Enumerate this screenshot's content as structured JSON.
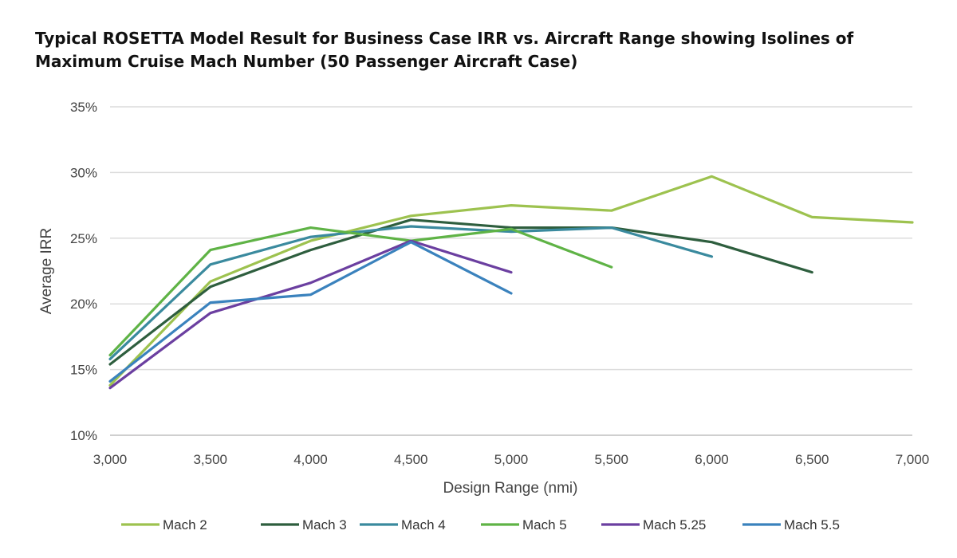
{
  "chart_data": {
    "type": "line",
    "title": "Typical ROSETTA Model Result for Business Case IRR vs. Aircraft Range showing Isolines of Maximum Cruise Mach Number (50 Passenger Aircraft Case)",
    "xlabel": "Design Range (nmi)",
    "ylabel": "Average IRR",
    "xlim": [
      3000,
      7000
    ],
    "ylim": [
      10,
      35
    ],
    "x_ticks": [
      "3,000",
      "3,500",
      "4,000",
      "4,500",
      "5,000",
      "5,500",
      "6,000",
      "6,500",
      "7,000"
    ],
    "x_tick_values": [
      3000,
      3500,
      4000,
      4500,
      5000,
      5500,
      6000,
      6500,
      7000
    ],
    "y_ticks": [
      "10%",
      "15%",
      "20%",
      "25%",
      "30%",
      "35%"
    ],
    "y_tick_values": [
      10,
      15,
      20,
      25,
      30,
      35
    ],
    "grid": "horizontal",
    "legend_position": "bottom",
    "series": [
      {
        "name": "Mach 2",
        "color": "#9dc24f",
        "x": [
          3000,
          3500,
          4000,
          4500,
          5000,
          5500,
          6000,
          6500,
          7000
        ],
        "y": [
          13.8,
          21.7,
          24.8,
          26.7,
          27.5,
          27.1,
          29.7,
          26.6,
          26.2
        ]
      },
      {
        "name": "Mach 3",
        "color": "#2e5e3e",
        "x": [
          3000,
          3500,
          4000,
          4500,
          5000,
          5500,
          6000,
          6500
        ],
        "y": [
          15.4,
          21.3,
          24.1,
          26.4,
          25.8,
          25.8,
          24.7,
          22.4
        ]
      },
      {
        "name": "Mach 4",
        "color": "#3a8a9e",
        "x": [
          3000,
          3500,
          4000,
          4500,
          5000,
          5500,
          6000
        ],
        "y": [
          15.8,
          23.0,
          25.1,
          25.9,
          25.5,
          25.8,
          23.6
        ]
      },
      {
        "name": "Mach 5",
        "color": "#5fb346",
        "x": [
          3000,
          3500,
          4000,
          4500,
          5000,
          5500
        ],
        "y": [
          16.1,
          24.1,
          25.8,
          24.8,
          25.7,
          22.8
        ]
      },
      {
        "name": "Mach 5.25",
        "color": "#6b3fa0",
        "x": [
          3000,
          3500,
          4000,
          4500,
          5000
        ],
        "y": [
          13.6,
          19.3,
          21.6,
          24.8,
          22.4
        ]
      },
      {
        "name": "Mach 5.5",
        "color": "#3a82bd",
        "x": [
          3000,
          3500,
          4000,
          4500,
          5000
        ],
        "y": [
          14.1,
          20.1,
          20.7,
          24.7,
          20.8
        ]
      }
    ]
  }
}
